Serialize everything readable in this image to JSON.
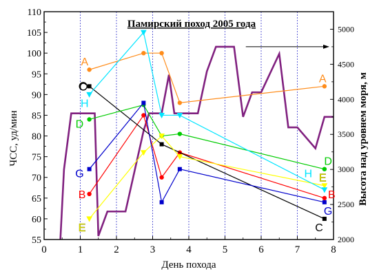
{
  "chart_data": {
    "type": "line",
    "title": "Памирский поход 2005 года",
    "xlabel": "День похода",
    "ylabel": "ЧСС, уд/мин",
    "y2label": "Высота над уровнем моря, м",
    "xlim": [
      0,
      8
    ],
    "ylim": [
      55,
      110
    ],
    "y2lim": [
      2000,
      5250
    ],
    "x_ticks": [
      0,
      1,
      2,
      3,
      4,
      5,
      6,
      7,
      8
    ],
    "y_ticks": [
      55,
      60,
      65,
      70,
      75,
      80,
      85,
      90,
      95,
      100,
      105,
      110
    ],
    "y2_ticks": [
      2000,
      2500,
      3000,
      3500,
      4000,
      4500,
      5000
    ],
    "grid": "vertical dotted lines at integer days",
    "series": [
      {
        "name": "A",
        "color": "#ff8c1a",
        "marker": "circle",
        "x": [
          1.25,
          2.75,
          3.25,
          3.75,
          7.75
        ],
        "y": [
          96,
          100,
          100,
          88,
          92
        ],
        "label_left": [
          1.12,
          98
        ],
        "label_right": [
          7.7,
          94
        ]
      },
      {
        "name": "B",
        "color": "#ff0000",
        "marker": "circle",
        "x": [
          1.25,
          2.75,
          3.25,
          3.75,
          7.75
        ],
        "y": [
          66,
          85,
          70,
          76,
          65
        ],
        "label_left": [
          1.05,
          66
        ],
        "label_right": [
          7.95,
          66
        ]
      },
      {
        "name": "C",
        "color": "#000000",
        "marker": "square",
        "x": [
          1.25,
          3.25,
          7.75
        ],
        "y": [
          92,
          78,
          60
        ],
        "label_left": [
          1.08,
          92
        ],
        "label_right": [
          7.6,
          58
        ]
      },
      {
        "name": "D",
        "color": "#00cc00",
        "marker": "circle",
        "x": [
          1.25,
          2.75,
          3.25,
          3.75,
          7.75
        ],
        "y": [
          84,
          87.5,
          80,
          80.5,
          72
        ],
        "label_left": [
          0.98,
          83
        ],
        "label_right": [
          7.85,
          74
        ]
      },
      {
        "name": "E",
        "color": "#ffff00",
        "marker": "triangle",
        "x": [
          1.25,
          2.75,
          3.25,
          3.75,
          7.75
        ],
        "y": [
          60,
          76,
          80,
          75,
          68
        ],
        "label_left": [
          1.05,
          58
        ],
        "label_right": [
          7.7,
          70
        ]
      },
      {
        "name": "G",
        "color": "#0000cc",
        "marker": "square",
        "x": [
          1.25,
          2.75,
          3.25,
          3.75,
          7.75
        ],
        "y": [
          72,
          88,
          64,
          72,
          64
        ],
        "label_left": [
          0.98,
          71
        ],
        "label_right": [
          7.85,
          62
        ]
      },
      {
        "name": "H",
        "color": "#00e5ff",
        "marker": "triangle",
        "x": [
          1.25,
          2.75,
          3.25,
          3.75,
          7.75
        ],
        "y": [
          90,
          105,
          85,
          85,
          67
        ],
        "label_left": [
          1.12,
          88
        ],
        "label_right": [
          7.3,
          71
        ]
      }
    ],
    "altitude_series": {
      "name": "altitude",
      "axis": "right",
      "color": "#80207f",
      "x": [
        0.45,
        0.55,
        0.75,
        1.0,
        1.4,
        1.5,
        1.75,
        2.25,
        2.75,
        2.9,
        3.25,
        3.45,
        3.6,
        4.25,
        4.5,
        4.75,
        5.25,
        5.5,
        5.75,
        6.0,
        6.5,
        6.75,
        7.0,
        7.5,
        7.75,
        8.0
      ],
      "y": [
        2000,
        3000,
        3800,
        3800,
        3800,
        2050,
        2400,
        2400,
        3550,
        3800,
        3800,
        4350,
        3800,
        3800,
        4400,
        4750,
        4750,
        3750,
        4100,
        4100,
        4650,
        3600,
        3600,
        3300,
        3750,
        3750
      ]
    },
    "annotations": [
      {
        "type": "arrow",
        "from": [
          5.5,
          4750
        ],
        "to": [
          8.0,
          4750
        ],
        "axis": "right",
        "color": "#000000"
      },
      {
        "type": "open-circle",
        "at": [
          1.08,
          92
        ],
        "color": "#000000"
      }
    ]
  }
}
